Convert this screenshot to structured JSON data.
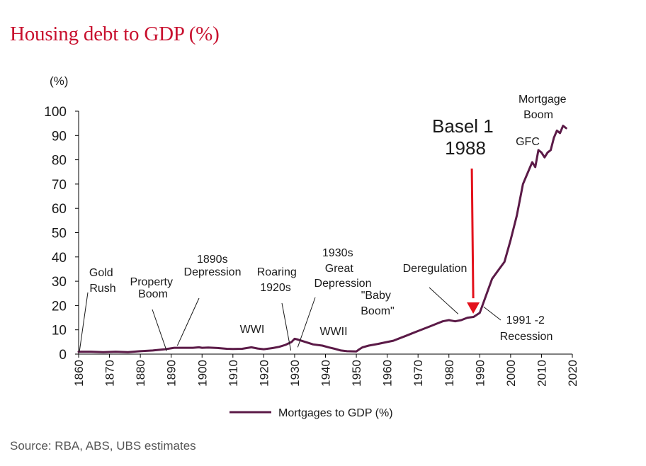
{
  "header": {
    "title": "Housing debt to GDP (%)"
  },
  "footer": {
    "source": "Source: RBA, ABS, UBS estimates"
  },
  "colors": {
    "title": "#c8102e",
    "series": "#5b1a47",
    "arrow": "#e3121c",
    "axis": "#000000"
  },
  "chart_data": {
    "type": "line",
    "title": "Housing debt to GDP (%)",
    "ylabel": "(%)",
    "xlabel": "",
    "ylim": [
      0,
      100
    ],
    "xlim": [
      1860,
      2020
    ],
    "yticks": [
      "0",
      "10",
      "20",
      "30",
      "40",
      "50",
      "60",
      "70",
      "80",
      "90",
      "100"
    ],
    "xticks": [
      "1860",
      "1870",
      "1880",
      "1890",
      "1900",
      "1910",
      "1920",
      "1930",
      "1940",
      "1950",
      "1960",
      "1970",
      "1980",
      "1990",
      "2000",
      "2010",
      "2020"
    ],
    "legend": {
      "position": "bottom-center",
      "label": "Mortgages to GDP (%)"
    },
    "series": [
      {
        "name": "Mortgages to GDP (%)",
        "x": [
          1860,
          1864,
          1868,
          1872,
          1876,
          1880,
          1884,
          1888,
          1891,
          1893,
          1895,
          1897,
          1899,
          1900,
          1902,
          1905,
          1908,
          1910,
          1913,
          1916,
          1918,
          1920,
          1923,
          1925,
          1927,
          1929,
          1930,
          1931,
          1933,
          1936,
          1939,
          1941,
          1943,
          1945,
          1947,
          1950,
          1951,
          1952,
          1954,
          1957,
          1960,
          1962,
          1964,
          1966,
          1968,
          1970,
          1972,
          1974,
          1976,
          1978,
          1980,
          1982,
          1984,
          1986,
          1988,
          1990,
          1992,
          1994,
          1996,
          1998,
          2000,
          2002,
          2004,
          2006,
          2007,
          2008,
          2009,
          2010,
          2011,
          2012,
          2013,
          2014,
          2015,
          2016,
          2017,
          2018
        ],
        "values": [
          1,
          1,
          0.8,
          1,
          0.8,
          1.2,
          1.5,
          2,
          2.6,
          2.6,
          2.6,
          2.6,
          2.8,
          2.6,
          2.7,
          2.5,
          2.2,
          2.1,
          2.2,
          2.8,
          2.3,
          2,
          2.5,
          3,
          3.8,
          5,
          6.3,
          6,
          5.2,
          4,
          3.5,
          2.8,
          2.2,
          1.5,
          1.2,
          1.1,
          2,
          2.8,
          3.5,
          4.2,
          5,
          5.5,
          6.5,
          7.5,
          8.5,
          9.5,
          10.5,
          11.5,
          12.5,
          13.5,
          14,
          13.5,
          14,
          15,
          15.3,
          17,
          24,
          31,
          34.5,
          38,
          47,
          57,
          70,
          76,
          79,
          77,
          84,
          83,
          81,
          83,
          84,
          89,
          92,
          91,
          94,
          93
        ]
      }
    ],
    "annotations": [
      {
        "id": "gold-rush",
        "text": [
          "Gold",
          "Rush"
        ],
        "x": 1860,
        "y": 0.5
      },
      {
        "id": "property-boom",
        "text": [
          "Property",
          "Boom"
        ],
        "x": 1889,
        "y": 4
      },
      {
        "id": "1890s-depression",
        "text": [
          "1890s",
          "Depression"
        ],
        "x": 1892,
        "y": 5
      },
      {
        "id": "wwi",
        "text": [
          "WWI"
        ],
        "x": null,
        "y": null
      },
      {
        "id": "roaring-1920s",
        "text": [
          "Roaring",
          "1920s"
        ],
        "x": 1929,
        "y": 7
      },
      {
        "id": "1930s-depression",
        "text": [
          "1930s",
          "Great",
          "Depression"
        ],
        "x": 1931,
        "y": 9
      },
      {
        "id": "wwii",
        "text": [
          "WWII"
        ],
        "x": null,
        "y": null
      },
      {
        "id": "baby-boom",
        "text": [
          "\"Baby",
          "Boom\""
        ],
        "x": null,
        "y": null
      },
      {
        "id": "deregulation",
        "text": [
          "Deregulation"
        ],
        "x": 1983,
        "y": 16
      },
      {
        "id": "basel-1",
        "text": [
          "Basel 1",
          "1988"
        ],
        "x": 1988,
        "y": 16
      },
      {
        "id": "recession-1991",
        "text": [
          "1991 -2",
          "Recession"
        ],
        "x": 1991,
        "y": 18
      },
      {
        "id": "gfc",
        "text": [
          "GFC"
        ],
        "x": null,
        "y": null
      },
      {
        "id": "mortgage-boom",
        "text": [
          "Mortgage",
          "Boom"
        ],
        "x": null,
        "y": null
      }
    ]
  }
}
